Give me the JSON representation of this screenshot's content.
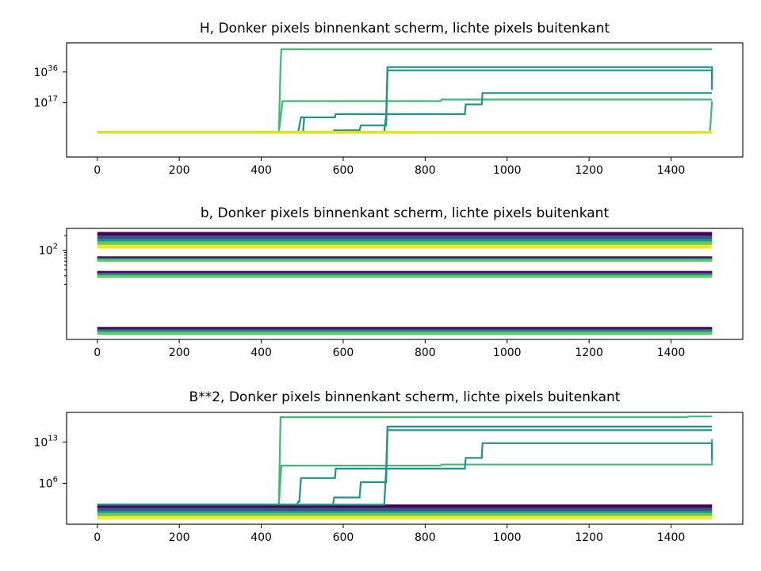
{
  "chart_data": [
    {
      "type": "line",
      "title": "H,  Donker pixels binnenkant scherm, lichte pixels buitenkant",
      "xlabel": "",
      "ylabel": "",
      "yscale": "log",
      "xlim": [
        -75,
        1575
      ],
      "ylim_log10": [
        -16.5,
        54
      ],
      "xticks": [
        0,
        200,
        400,
        600,
        800,
        1000,
        1200,
        1400
      ],
      "xtick_labels": [
        "0",
        "200",
        "400",
        "600",
        "800",
        "1000",
        "1200",
        "1400"
      ],
      "yticks_log10": [
        17,
        36
      ],
      "ytick_base": "10",
      "ytick_exponents": [
        "17",
        "36"
      ],
      "grid": false,
      "series": [
        {
          "color": "#3bbb75",
          "points": [
            [
              0,
              -1
            ],
            [
              443,
              -1
            ],
            [
              447,
              40
            ],
            [
              449,
              50
            ],
            [
              1500,
              50
            ]
          ]
        },
        {
          "color": "#3bbb75",
          "points": [
            [
              0,
              -1
            ],
            [
              443,
              -1
            ],
            [
              447,
              7
            ],
            [
              452,
              18
            ],
            [
              838,
              18
            ],
            [
              840,
              19
            ],
            [
              1500,
              19
            ]
          ]
        },
        {
          "color": "#3bbb75",
          "points": [
            [
              0,
              -1
            ],
            [
              1495,
              -1
            ],
            [
              1500,
              18
            ]
          ]
        },
        {
          "color": "#21918c",
          "points": [
            [
              0,
              -1
            ],
            [
              490,
              -1
            ],
            [
              497,
              8
            ],
            [
              580,
              8
            ],
            [
              582,
              10
            ],
            [
              705,
              10
            ],
            [
              708,
              39
            ],
            [
              1500,
              39
            ],
            [
              1500,
              31
            ]
          ]
        },
        {
          "color": "#21918c",
          "points": [
            [
              0,
              -1
            ],
            [
              502,
              -1
            ],
            [
              505,
              8
            ]
          ]
        },
        {
          "color": "#21918c",
          "points": [
            [
              0,
              -1
            ],
            [
              575,
              -1
            ],
            [
              578,
              0
            ],
            [
              640,
              0
            ],
            [
              643,
              3
            ],
            [
              705,
              3
            ],
            [
              708,
              37
            ],
            [
              1500,
              37
            ],
            [
              1500,
              25
            ]
          ]
        },
        {
          "color": "#21918c",
          "points": [
            [
              0,
              -1
            ],
            [
              700,
              -1
            ],
            [
              705,
              10
            ],
            [
              897,
              10
            ],
            [
              899,
              16
            ],
            [
              938,
              16
            ],
            [
              940,
              23
            ],
            [
              1500,
              23
            ]
          ]
        },
        {
          "color": "#3bbb75",
          "points": [
            [
              0,
              -1
            ],
            [
              720,
              -1
            ],
            [
              723,
              -1.3
            ],
            [
              1500,
              -1.3
            ]
          ]
        },
        {
          "color": "#b5de2b",
          "points": [
            [
              0,
              -1.5
            ],
            [
              1500,
              -1.5
            ]
          ]
        },
        {
          "color": "#fde725",
          "points": [
            [
              0,
              -1
            ],
            [
              1500,
              -1
            ]
          ]
        }
      ]
    },
    {
      "type": "line",
      "title": "b,  Donker pixels binnenkant scherm, lichte pixels buitenkant",
      "xlabel": "",
      "ylabel": "",
      "yscale": "log",
      "xlim": [
        -75,
        1575
      ],
      "ylim_log10": [
        0.17,
        2.45
      ],
      "xticks": [
        0,
        200,
        400,
        600,
        800,
        1000,
        1200,
        1400
      ],
      "xtick_labels": [
        "0",
        "200",
        "400",
        "600",
        "800",
        "1000",
        "1200",
        "1400"
      ],
      "yticks_log10": [
        2
      ],
      "ytick_base": "10",
      "ytick_exponents": [
        "2"
      ],
      "yminor_log10": [
        1.30103,
        1.47712,
        1.60206,
        1.69897,
        1.77815,
        1.8451,
        1.90309,
        1.95424,
        2.30103
      ],
      "grid": false,
      "bands": [
        {
          "log10": [
            2.36,
            2.05
          ],
          "colors": [
            "#440154",
            "#3b528b",
            "#21918c",
            "#5ec962",
            "#fde725"
          ]
        },
        {
          "log10": [
            1.86,
            1.78
          ],
          "colors": [
            "#440154",
            "#3b528b",
            "#21918c",
            "#5ec962"
          ]
        },
        {
          "log10": [
            1.56,
            1.45
          ],
          "colors": [
            "#440154",
            "#3b528b",
            "#21918c",
            "#5ec962"
          ]
        },
        {
          "log10": [
            0.41,
            0.28
          ],
          "colors": [
            "#440154",
            "#3b528b",
            "#21918c",
            "#5ec962"
          ]
        }
      ]
    },
    {
      "type": "line",
      "title": "B**2,  Donker pixels binnenkant scherm, lichte pixels buitenkant",
      "xlabel": "",
      "ylabel": "",
      "yscale": "log",
      "xlim": [
        -75,
        1575
      ],
      "ylim_log10": [
        -0.9,
        18
      ],
      "xticks": [
        0,
        200,
        400,
        600,
        800,
        1000,
        1200,
        1400
      ],
      "xtick_labels": [
        "0",
        "200",
        "400",
        "600",
        "800",
        "1000",
        "1200",
        "1400"
      ],
      "yticks_log10": [
        6,
        13
      ],
      "ytick_base": "10",
      "ytick_exponents": [
        "6",
        "13"
      ],
      "grid": false,
      "series": [
        {
          "color": "#3bbb75",
          "points": [
            [
              0,
              2.4
            ],
            [
              443,
              2.4
            ],
            [
              447,
              17.2
            ],
            [
              1440,
              17.2
            ],
            [
              1442,
              17.3
            ],
            [
              1500,
              17.3
            ]
          ]
        },
        {
          "color": "#3bbb75",
          "points": [
            [
              0,
              2.4
            ],
            [
              443,
              2.4
            ],
            [
              449,
              9.0
            ],
            [
              838,
              9.0
            ],
            [
              840,
              9.2
            ],
            [
              1500,
              9.2
            ],
            [
              1500,
              13.5
            ]
          ]
        },
        {
          "color": "#21918c",
          "points": [
            [
              0,
              2.4
            ],
            [
              487,
              2.4
            ],
            [
              490,
              2.9
            ],
            [
              493,
              2.9
            ],
            [
              497,
              6.9
            ],
            [
              580,
              6.9
            ],
            [
              582,
              8.5
            ],
            [
              705,
              8.5
            ],
            [
              708,
              15.6
            ],
            [
              1500,
              15.6
            ]
          ]
        },
        {
          "color": "#21918c",
          "points": [
            [
              0,
              2.4
            ],
            [
              575,
              2.4
            ],
            [
              578,
              3.6
            ],
            [
              640,
              3.6
            ],
            [
              643,
              6.2
            ],
            [
              705,
              6.2
            ],
            [
              708,
              15.0
            ],
            [
              1500,
              15.0
            ]
          ]
        },
        {
          "color": "#21918c",
          "points": [
            [
              0,
              2.4
            ],
            [
              700,
              2.4
            ],
            [
              705,
              8.5
            ],
            [
              897,
              8.5
            ],
            [
              899,
              10.3
            ],
            [
              938,
              10.3
            ],
            [
              940,
              12.8
            ],
            [
              1500,
              12.8
            ],
            [
              1500,
              10.0
            ]
          ]
        }
      ],
      "bands": [
        {
          "log10": [
            2.3,
            0.0
          ],
          "colors": [
            "#440154",
            "#3b528b",
            "#21918c",
            "#5ec962",
            "#fde725"
          ]
        }
      ]
    }
  ]
}
